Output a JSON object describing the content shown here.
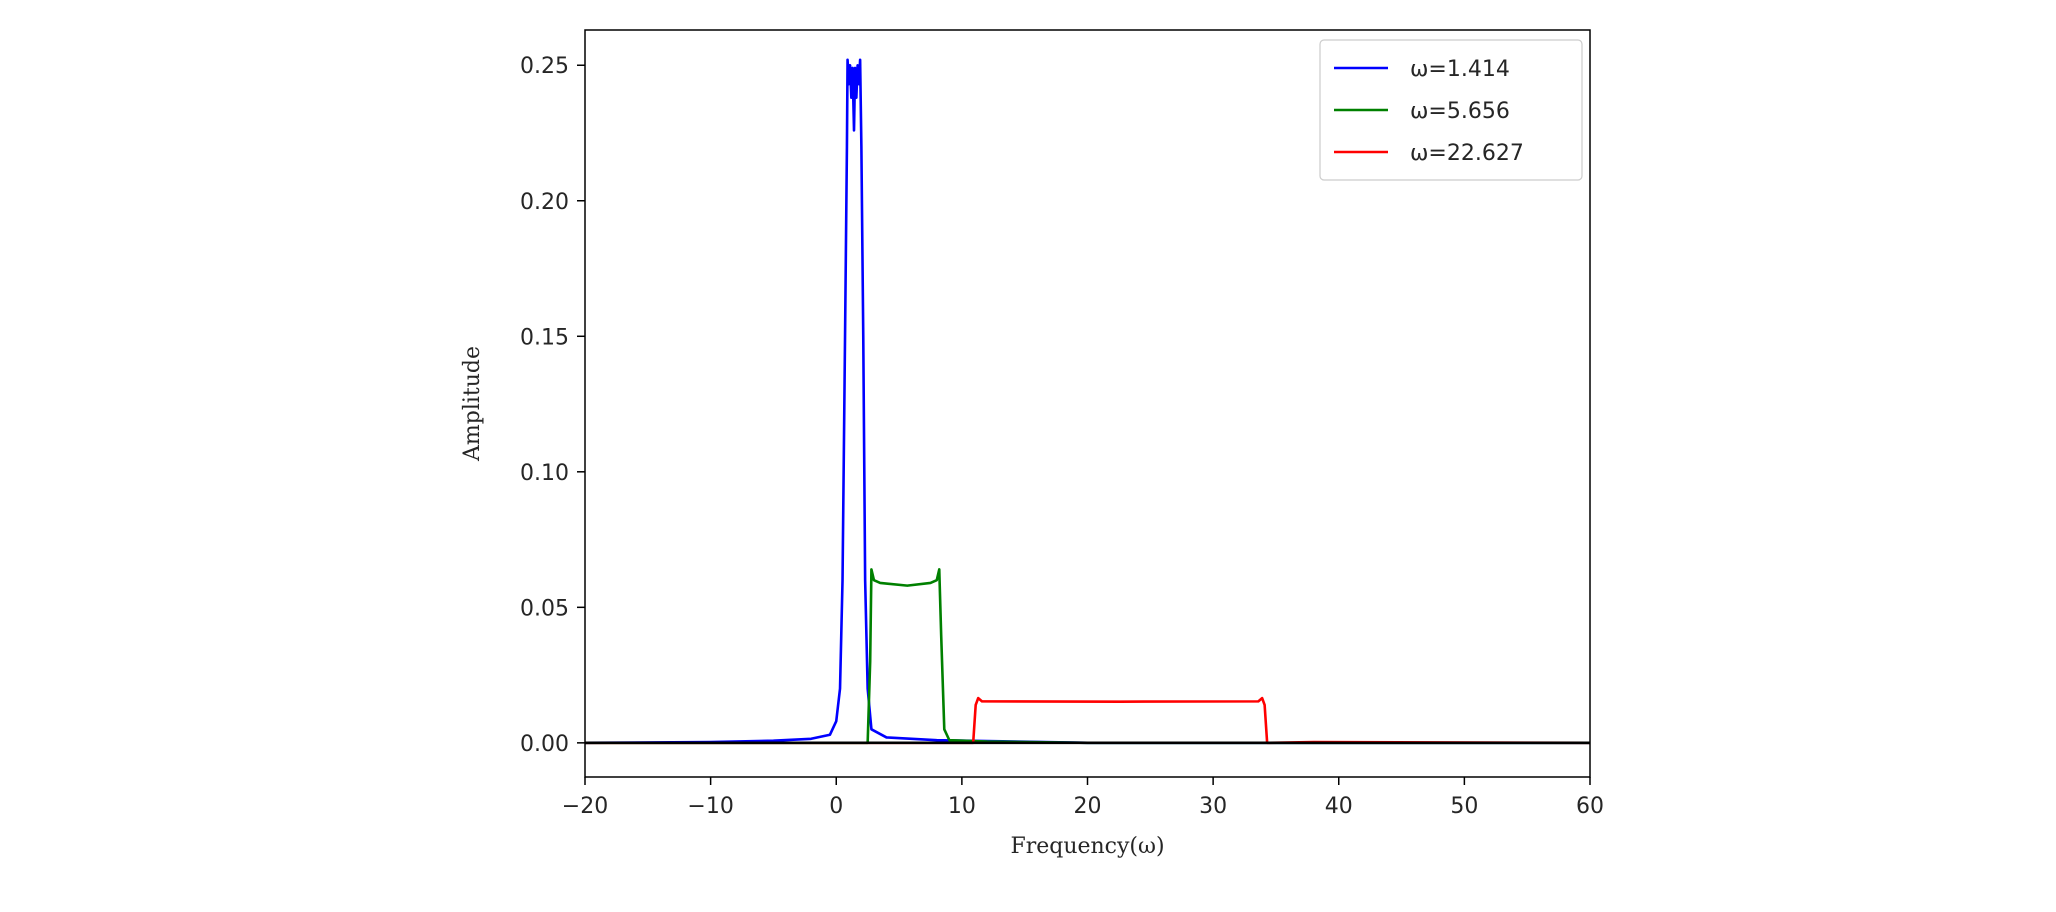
{
  "chart_data": {
    "type": "line",
    "xlabel": "Frequency(ω)",
    "ylabel": "Amplitude",
    "xlim": [
      -20,
      60
    ],
    "ylim": [
      -0.0126,
      0.263
    ],
    "xticks": [
      -20,
      -10,
      0,
      10,
      20,
      30,
      40,
      50,
      60
    ],
    "xtick_labels": [
      "−20",
      "−10",
      "0",
      "10",
      "20",
      "30",
      "40",
      "50",
      "60"
    ],
    "yticks": [
      0.0,
      0.05,
      0.1,
      0.15,
      0.2,
      0.25
    ],
    "ytick_labels": [
      "0.00",
      "0.05",
      "0.10",
      "0.15",
      "0.20",
      "0.25"
    ],
    "grid": false,
    "legend_position": "top-right",
    "series": [
      {
        "name": "ω=1.414",
        "color": "#0000ff",
        "points": [
          [
            -20,
            0.0
          ],
          [
            -10,
            0.0003
          ],
          [
            -5,
            0.0008
          ],
          [
            -2,
            0.0015
          ],
          [
            -0.5,
            0.003
          ],
          [
            0,
            0.008
          ],
          [
            0.3,
            0.02
          ],
          [
            0.5,
            0.06
          ],
          [
            0.7,
            0.15
          ],
          [
            0.85,
            0.22
          ],
          [
            0.9,
            0.252
          ],
          [
            1.0,
            0.243
          ],
          [
            1.1,
            0.25
          ],
          [
            1.2,
            0.238
          ],
          [
            1.3,
            0.249
          ],
          [
            1.414,
            0.226
          ],
          [
            1.5,
            0.249
          ],
          [
            1.6,
            0.238
          ],
          [
            1.7,
            0.25
          ],
          [
            1.8,
            0.243
          ],
          [
            1.9,
            0.252
          ],
          [
            2.0,
            0.22
          ],
          [
            2.15,
            0.15
          ],
          [
            2.3,
            0.06
          ],
          [
            2.5,
            0.02
          ],
          [
            2.8,
            0.005
          ],
          [
            4,
            0.002
          ],
          [
            8,
            0.001
          ],
          [
            20,
            0.0
          ],
          [
            60,
            0.0
          ]
        ]
      },
      {
        "name": "ω=5.656",
        "color": "#008000",
        "points": [
          [
            -20,
            0.0
          ],
          [
            2.5,
            0.0
          ],
          [
            2.7,
            0.03
          ],
          [
            2.8,
            0.064
          ],
          [
            3.0,
            0.06
          ],
          [
            3.5,
            0.059
          ],
          [
            5.656,
            0.058
          ],
          [
            7.5,
            0.059
          ],
          [
            8.0,
            0.06
          ],
          [
            8.2,
            0.064
          ],
          [
            8.35,
            0.04
          ],
          [
            8.6,
            0.005
          ],
          [
            9.0,
            0.001
          ],
          [
            12,
            0.0005
          ],
          [
            20,
            0.0
          ],
          [
            60,
            0.0
          ]
        ]
      },
      {
        "name": "ω=22.627",
        "color": "#ff0000",
        "points": [
          [
            -20,
            0.0
          ],
          [
            10.9,
            0.0
          ],
          [
            11.1,
            0.014
          ],
          [
            11.3,
            0.0165
          ],
          [
            11.6,
            0.0153
          ],
          [
            22.627,
            0.0152
          ],
          [
            33.6,
            0.0153
          ],
          [
            33.9,
            0.0165
          ],
          [
            34.1,
            0.014
          ],
          [
            34.3,
            0.0
          ],
          [
            38,
            0.0003
          ],
          [
            60,
            0.0
          ]
        ]
      }
    ],
    "baseline": {
      "color": "#000000",
      "points": [
        [
          -20,
          0.0
        ],
        [
          60,
          0.0
        ]
      ]
    }
  }
}
